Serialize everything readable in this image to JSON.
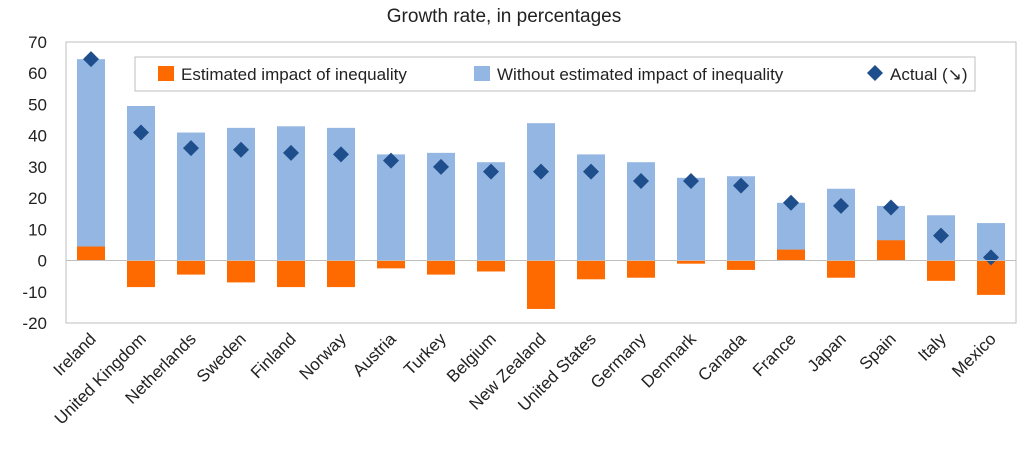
{
  "chart_data": {
    "type": "bar",
    "title": "Growth rate, in percentages",
    "categories": [
      "Ireland",
      "United Kingdom",
      "Netherlands",
      "Sweden",
      "Finland",
      "Norway",
      "Austria",
      "Turkey",
      "Belgium",
      "New Zealand",
      "United States",
      "Germany",
      "Denmark",
      "Canada",
      "France",
      "Japan",
      "Spain",
      "Italy",
      "Mexico"
    ],
    "series": [
      {
        "name": "Estimated impact of inequality",
        "kind": "bar",
        "color": "#FF6A00",
        "values": [
          4.5,
          -8.5,
          -4.5,
          -7,
          -8.5,
          -8.5,
          -2.5,
          -4.5,
          -3.5,
          -15.5,
          -6,
          -5.5,
          -1,
          -3,
          3.5,
          -5.5,
          6.5,
          -6.5,
          -11
        ]
      },
      {
        "name": "Without estimated impact of inequality",
        "kind": "bar",
        "color": "#94B6E2",
        "values": [
          64.5,
          49.5,
          41,
          42.5,
          43,
          42.5,
          34,
          34.5,
          31.5,
          44,
          34,
          31.5,
          26.5,
          27,
          18.5,
          23,
          17.5,
          14.5,
          12
        ]
      },
      {
        "name": "Actual (↘)",
        "kind": "marker",
        "color": "#1F4E8C",
        "values": [
          64.5,
          41,
          36,
          35.5,
          34.5,
          34,
          32,
          30,
          28.5,
          28.5,
          28.5,
          25.5,
          25.5,
          24,
          18.5,
          17.5,
          17,
          8,
          1
        ]
      }
    ],
    "yticks": [
      70,
      60,
      50,
      40,
      30,
      20,
      10,
      0,
      -10,
      -20
    ],
    "ylim": [
      -20,
      70
    ],
    "grid": false,
    "legend": "top"
  }
}
